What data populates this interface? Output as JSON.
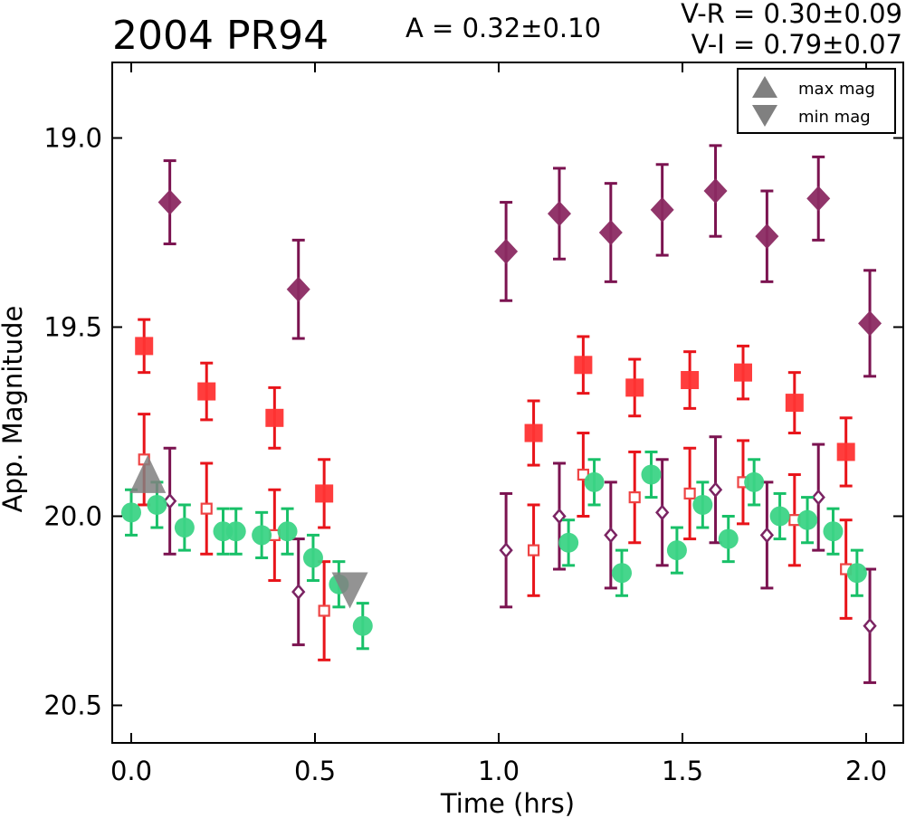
{
  "header": {
    "title": "2004 PR94",
    "amplitude": "A  = 0.32±0.10",
    "color_vr": "V-R = 0.30±0.09",
    "color_vi": "V-I  = 0.79±0.07"
  },
  "chart_data": {
    "type": "scatter",
    "title": "2004 PR94",
    "xlabel": "Time (hrs)",
    "ylabel": "App. Magnitude",
    "xlim": [
      -0.05,
      2.1
    ],
    "ylim": [
      20.6,
      18.8
    ],
    "y_inverted": true,
    "x_ticks": [
      0.0,
      0.5,
      1.0,
      1.5,
      2.0
    ],
    "x_tick_labels": [
      "0.0",
      "0.5",
      "1.0",
      "1.5",
      "2.0"
    ],
    "y_ticks": [
      19.0,
      19.5,
      20.0,
      20.5
    ],
    "y_tick_labels": [
      "19.0",
      "19.5",
      "20.0",
      "20.5"
    ],
    "grid": false,
    "legend_position": "top-right",
    "legend": [
      {
        "label": "max mag",
        "marker": "triangle-up",
        "color": "#808080"
      },
      {
        "label": "min mag",
        "marker": "triangle-down",
        "color": "#808080"
      }
    ],
    "series": [
      {
        "marker": "diamond-filled",
        "color": "#8b2a62",
        "error_color": "#7b1350",
        "points": [
          {
            "x": 0.105,
            "y": 19.17,
            "err": 0.11
          },
          {
            "x": 0.455,
            "y": 19.4,
            "err": 0.13
          },
          {
            "x": 1.02,
            "y": 19.3,
            "err": 0.13
          },
          {
            "x": 1.165,
            "y": 19.2,
            "err": 0.12
          },
          {
            "x": 1.305,
            "y": 19.25,
            "err": 0.13
          },
          {
            "x": 1.445,
            "y": 19.19,
            "err": 0.12
          },
          {
            "x": 1.59,
            "y": 19.14,
            "err": 0.12
          },
          {
            "x": 1.73,
            "y": 19.26,
            "err": 0.12
          },
          {
            "x": 1.87,
            "y": 19.16,
            "err": 0.11
          },
          {
            "x": 2.01,
            "y": 19.49,
            "err": 0.14
          }
        ]
      },
      {
        "marker": "square-filled",
        "color": "#ff3333",
        "error_color": "#e8141a",
        "points": [
          {
            "x": 0.035,
            "y": 19.55,
            "err": 0.07
          },
          {
            "x": 0.205,
            "y": 19.67,
            "err": 0.075
          },
          {
            "x": 0.39,
            "y": 19.74,
            "err": 0.08
          },
          {
            "x": 0.525,
            "y": 19.94,
            "err": 0.09
          },
          {
            "x": 1.095,
            "y": 19.78,
            "err": 0.085
          },
          {
            "x": 1.23,
            "y": 19.6,
            "err": 0.075
          },
          {
            "x": 1.37,
            "y": 19.66,
            "err": 0.075
          },
          {
            "x": 1.52,
            "y": 19.64,
            "err": 0.075
          },
          {
            "x": 1.665,
            "y": 19.62,
            "err": 0.07
          },
          {
            "x": 1.805,
            "y": 19.7,
            "err": 0.08
          },
          {
            "x": 1.945,
            "y": 19.83,
            "err": 0.09
          }
        ]
      },
      {
        "marker": "square-open",
        "color": "#ee4444",
        "error_color": "#e8141a",
        "points": [
          {
            "x": 0.035,
            "y": 19.85,
            "err": 0.12
          },
          {
            "x": 0.205,
            "y": 19.98,
            "err": 0.12
          },
          {
            "x": 0.39,
            "y": 20.05,
            "err": 0.12
          },
          {
            "x": 0.525,
            "y": 20.25,
            "err": 0.13
          },
          {
            "x": 1.095,
            "y": 20.09,
            "err": 0.12
          },
          {
            "x": 1.23,
            "y": 19.89,
            "err": 0.11
          },
          {
            "x": 1.37,
            "y": 19.95,
            "err": 0.12
          },
          {
            "x": 1.52,
            "y": 19.94,
            "err": 0.12
          },
          {
            "x": 1.665,
            "y": 19.91,
            "err": 0.11
          },
          {
            "x": 1.805,
            "y": 20.01,
            "err": 0.12
          },
          {
            "x": 1.945,
            "y": 20.14,
            "err": 0.13
          }
        ]
      },
      {
        "marker": "diamond-open",
        "color": "#7b2463",
        "error_color": "#7b1350",
        "points": [
          {
            "x": 0.105,
            "y": 19.96,
            "err": 0.14
          },
          {
            "x": 0.455,
            "y": 20.2,
            "err": 0.14
          },
          {
            "x": 1.02,
            "y": 20.09,
            "err": 0.15
          },
          {
            "x": 1.165,
            "y": 20.0,
            "err": 0.14
          },
          {
            "x": 1.305,
            "y": 20.05,
            "err": 0.14
          },
          {
            "x": 1.445,
            "y": 19.99,
            "err": 0.14
          },
          {
            "x": 1.59,
            "y": 19.93,
            "err": 0.14
          },
          {
            "x": 1.73,
            "y": 20.05,
            "err": 0.14
          },
          {
            "x": 1.87,
            "y": 19.95,
            "err": 0.14
          },
          {
            "x": 2.01,
            "y": 20.29,
            "err": 0.15
          }
        ]
      },
      {
        "marker": "circle-filled",
        "color": "#3cd486",
        "error_color": "#18c068",
        "points": [
          {
            "x": 0.0,
            "y": 19.99,
            "err": 0.06
          },
          {
            "x": 0.07,
            "y": 19.97,
            "err": 0.06
          },
          {
            "x": 0.145,
            "y": 20.03,
            "err": 0.06
          },
          {
            "x": 0.25,
            "y": 20.04,
            "err": 0.06
          },
          {
            "x": 0.285,
            "y": 20.04,
            "err": 0.06
          },
          {
            "x": 0.355,
            "y": 20.05,
            "err": 0.06
          },
          {
            "x": 0.425,
            "y": 20.04,
            "err": 0.06
          },
          {
            "x": 0.495,
            "y": 20.11,
            "err": 0.06
          },
          {
            "x": 0.565,
            "y": 20.18,
            "err": 0.06
          },
          {
            "x": 0.63,
            "y": 20.29,
            "err": 0.06
          },
          {
            "x": 1.19,
            "y": 20.07,
            "err": 0.06
          },
          {
            "x": 1.26,
            "y": 19.91,
            "err": 0.06
          },
          {
            "x": 1.335,
            "y": 20.15,
            "err": 0.06
          },
          {
            "x": 1.415,
            "y": 19.89,
            "err": 0.06
          },
          {
            "x": 1.485,
            "y": 20.09,
            "err": 0.06
          },
          {
            "x": 1.555,
            "y": 19.97,
            "err": 0.06
          },
          {
            "x": 1.625,
            "y": 20.06,
            "err": 0.06
          },
          {
            "x": 1.695,
            "y": 19.91,
            "err": 0.06
          },
          {
            "x": 1.765,
            "y": 20.0,
            "err": 0.06
          },
          {
            "x": 1.84,
            "y": 20.01,
            "err": 0.06
          },
          {
            "x": 1.91,
            "y": 20.04,
            "err": 0.06
          },
          {
            "x": 1.975,
            "y": 20.15,
            "err": 0.06
          }
        ]
      },
      {
        "marker": "triangle-up",
        "color": "#808080",
        "points": [
          {
            "x": 0.045,
            "y": 19.91
          }
        ]
      },
      {
        "marker": "triangle-down",
        "color": "#808080",
        "points": [
          {
            "x": 0.595,
            "y": 20.22
          }
        ]
      }
    ]
  }
}
